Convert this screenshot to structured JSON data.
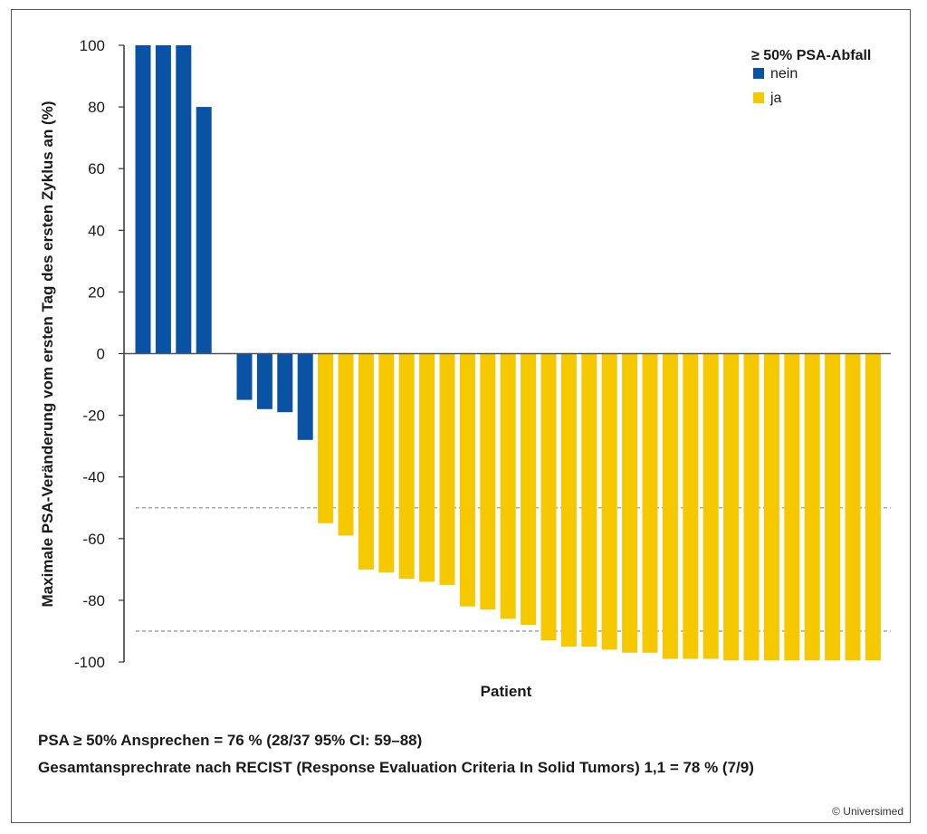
{
  "chart_data": {
    "type": "bar",
    "xlabel": "Patient",
    "ylabel": "Maximale PSA-Veränderung vom ersten Tag des ersten Zyklus an (%)",
    "ylim": [
      -100,
      100
    ],
    "yticks": [
      100,
      80,
      60,
      40,
      20,
      0,
      -20,
      -40,
      -60,
      -80,
      -100
    ],
    "reference_lines": [
      -50,
      -90
    ],
    "legend": {
      "title": "≥ 50% PSA-Abfall",
      "position": "top-right",
      "entries": [
        {
          "label": "nein",
          "color": "#0a52a3"
        },
        {
          "label": "ja",
          "color": "#f6c800"
        }
      ]
    },
    "series": [
      {
        "name": "nein",
        "color": "#0a52a3",
        "values": [
          100,
          100,
          100,
          80,
          -15,
          -18,
          -19,
          -28
        ]
      },
      {
        "name": "ja",
        "color": "#f6c800",
        "values": [
          -55,
          -59,
          -70,
          -71,
          -73,
          -74,
          -75,
          -82,
          -83,
          -86,
          -88,
          -93,
          -95,
          -95,
          -96,
          -97,
          -97,
          -99,
          -99,
          -99,
          -99.5,
          -99.5,
          -99.5,
          -99.5,
          -99.5,
          -99.5,
          -99.5,
          -99.5
        ]
      }
    ]
  },
  "footnotes": {
    "line1": "PSA ≥ 50% Ansprechen = 76 % (28/37 95% CI: 59–88)",
    "line2": "Gesamtansprechrate nach RECIST (Response Evaluation Criteria In Solid Tumors) 1,1 = 78 % (7/9)"
  },
  "credit": "© Universimed"
}
